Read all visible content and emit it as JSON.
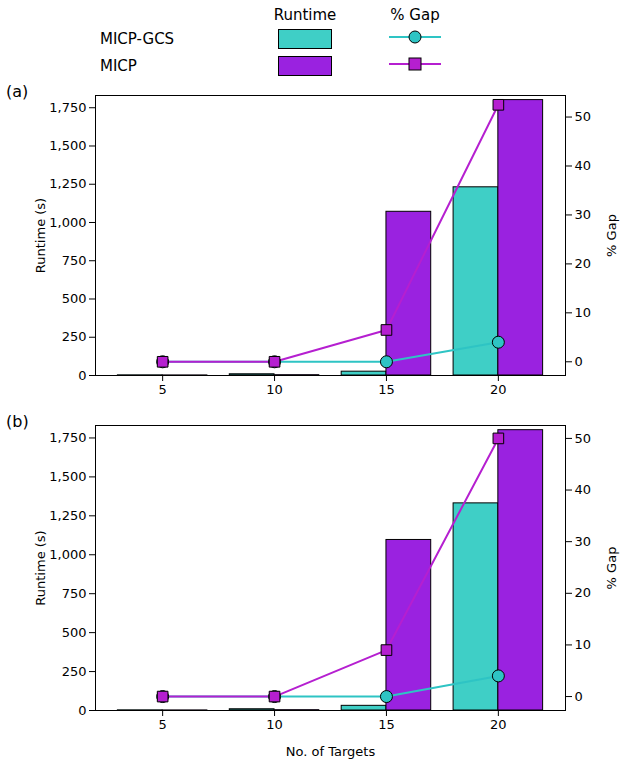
{
  "legend_headers": [
    "Runtime",
    "% Gap"
  ],
  "chart_data": [
    {
      "type": "bar",
      "title": "(a)",
      "ylabel": "Runtime (s)",
      "y2label": "% Gap",
      "categories": [
        "5",
        "10",
        "15",
        "20"
      ],
      "ylim": [
        0,
        1830
      ],
      "yticks": [
        0,
        250,
        500,
        750,
        1000,
        1250,
        1500,
        1750
      ],
      "y2lim": [
        -2.8,
        54.4
      ],
      "y2ticks": [
        0,
        10,
        20,
        30,
        40,
        50
      ],
      "grid": false,
      "series": [
        {
          "name": "MICP-GCS",
          "type": "bar",
          "color": "#3fcfc6",
          "values": [
            1,
            8,
            25,
            1230
          ]
        },
        {
          "name": "MICP",
          "type": "bar",
          "color": "#9a22e0",
          "values": [
            0.5,
            2,
            1070,
            1800
          ]
        },
        {
          "name": "MICP-GCS",
          "type": "line",
          "axis": "y2",
          "color": "#2ec4c4",
          "marker": "circle",
          "values": [
            0,
            0,
            0,
            4
          ]
        },
        {
          "name": "MICP",
          "type": "line",
          "axis": "y2",
          "color": "#b51fd0",
          "marker": "square",
          "values": [
            0,
            0,
            6.5,
            52.5
          ]
        }
      ]
    },
    {
      "type": "bar",
      "title": "(b)",
      "ylabel": "Runtime (s)",
      "y2label": "% Gap",
      "xlabel": "No. of Targets",
      "categories": [
        "5",
        "10",
        "15",
        "20"
      ],
      "ylim": [
        0,
        1830
      ],
      "yticks": [
        0,
        250,
        500,
        750,
        1000,
        1250,
        1500,
        1750
      ],
      "y2lim": [
        -2.7,
        52.5
      ],
      "y2ticks": [
        0,
        10,
        20,
        30,
        40,
        50
      ],
      "grid": false,
      "series": [
        {
          "name": "MICP-GCS",
          "type": "bar",
          "color": "#3fcfc6",
          "values": [
            1,
            8,
            30,
            1330
          ]
        },
        {
          "name": "MICP",
          "type": "bar",
          "color": "#9a22e0",
          "values": [
            0.5,
            2,
            1095,
            1800
          ]
        },
        {
          "name": "MICP-GCS",
          "type": "line",
          "axis": "y2",
          "color": "#2ec4c4",
          "marker": "circle",
          "values": [
            0,
            0,
            0,
            4
          ]
        },
        {
          "name": "MICP",
          "type": "line",
          "axis": "y2",
          "color": "#b51fd0",
          "marker": "square",
          "values": [
            0,
            0,
            9,
            50
          ]
        }
      ]
    }
  ]
}
